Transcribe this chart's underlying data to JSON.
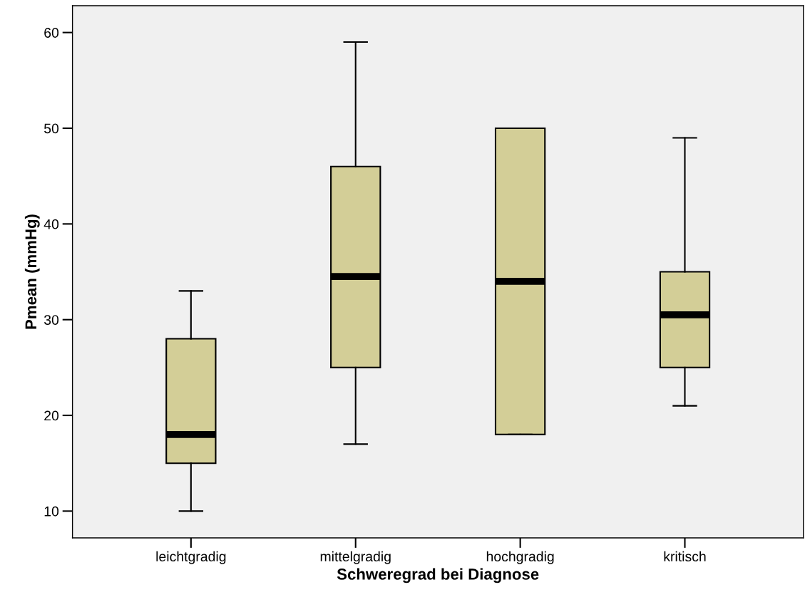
{
  "chart_data": {
    "type": "box",
    "xlabel": "Schweregrad bei Diagnose",
    "ylabel": "Pmean (mmHg)",
    "categories": [
      "leichtgradig",
      "mittelgradig",
      "hochgradig",
      "kritisch"
    ],
    "boxes": [
      {
        "low": 10,
        "q1": 15,
        "median": 18,
        "q3": 28,
        "high": 33
      },
      {
        "low": 17,
        "q1": 25,
        "median": 34.5,
        "q3": 46,
        "high": 59
      },
      {
        "low": 18,
        "q1": 18,
        "median": 34,
        "q3": 50,
        "high": 50
      },
      {
        "low": 21,
        "q1": 25,
        "median": 30.5,
        "q3": 35,
        "high": 49
      }
    ],
    "color": "#d3ce97",
    "ylim": [
      7.2,
      62.8
    ],
    "yticks": [
      10,
      20,
      30,
      40,
      50,
      60
    ],
    "grid": false
  }
}
